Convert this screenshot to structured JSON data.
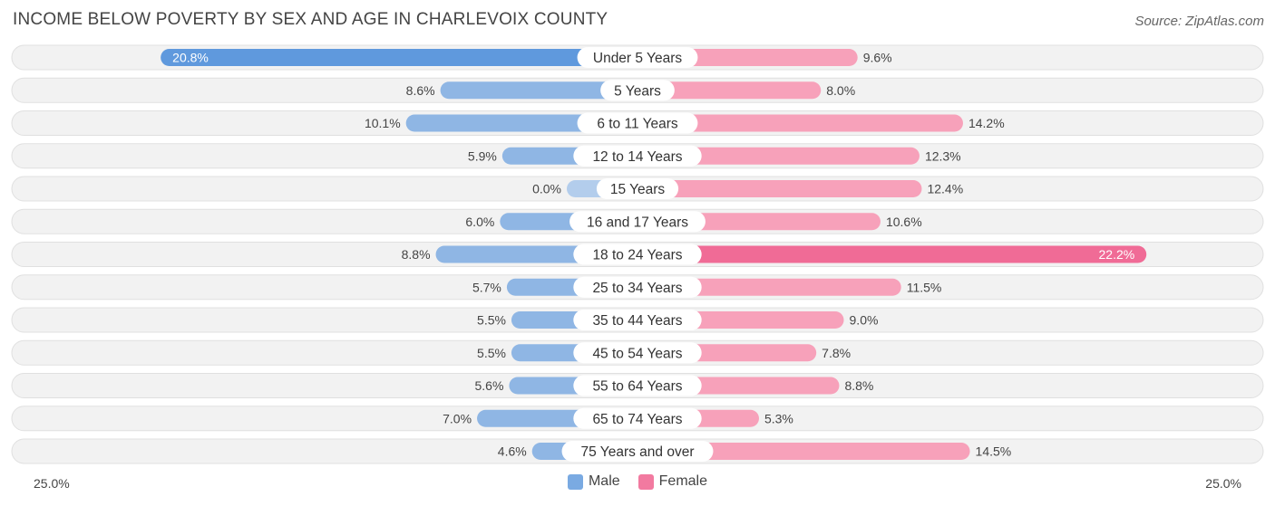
{
  "header": {
    "title": "INCOME BELOW POVERTY BY SEX AND AGE IN CHARLEVOIX COUNTY",
    "source": "Source: ZipAtlas.com"
  },
  "colors": {
    "male_bar": "#8fb6e4",
    "male_bar_light": "#b3cdec",
    "male_bar_max": "#5f99dd",
    "female_bar": "#f7a1ba",
    "female_bar_max": "#f06b96",
    "row_bg": "#f2f2f2",
    "row_border": "#e0e0e0"
  },
  "axis": {
    "left_label": "25.0%",
    "right_label": "25.0%"
  },
  "legend": [
    {
      "label": "Male",
      "color": "#7aaae2"
    },
    {
      "label": "Female",
      "color": "#f27aa0"
    }
  ],
  "chart_data": {
    "type": "bar",
    "orientation": "horizontal-diverging",
    "title": "INCOME BELOW POVERTY BY SEX AND AGE IN CHARLEVOIX COUNTY",
    "xlim": [
      -25,
      25
    ],
    "categories": [
      "Under 5 Years",
      "5 Years",
      "6 to 11 Years",
      "12 to 14 Years",
      "15 Years",
      "16 and 17 Years",
      "18 to 24 Years",
      "25 to 34 Years",
      "35 to 44 Years",
      "45 to 54 Years",
      "55 to 64 Years",
      "65 to 74 Years",
      "75 Years and over"
    ],
    "series": [
      {
        "name": "Male",
        "values": [
          20.8,
          8.6,
          10.1,
          5.9,
          0.0,
          6.0,
          8.8,
          5.7,
          5.5,
          5.5,
          5.6,
          7.0,
          4.6
        ],
        "labels": [
          "20.8%",
          "8.6%",
          "10.1%",
          "5.9%",
          "0.0%",
          "6.0%",
          "8.8%",
          "5.7%",
          "5.5%",
          "5.5%",
          "5.6%",
          "7.0%",
          "4.6%"
        ]
      },
      {
        "name": "Female",
        "values": [
          9.6,
          8.0,
          14.2,
          12.3,
          12.4,
          10.6,
          22.2,
          11.5,
          9.0,
          7.8,
          8.8,
          5.3,
          14.5
        ],
        "labels": [
          "9.6%",
          "8.0%",
          "14.2%",
          "12.3%",
          "12.4%",
          "10.6%",
          "22.2%",
          "11.5%",
          "9.0%",
          "7.8%",
          "8.8%",
          "5.3%",
          "14.5%"
        ]
      }
    ]
  }
}
